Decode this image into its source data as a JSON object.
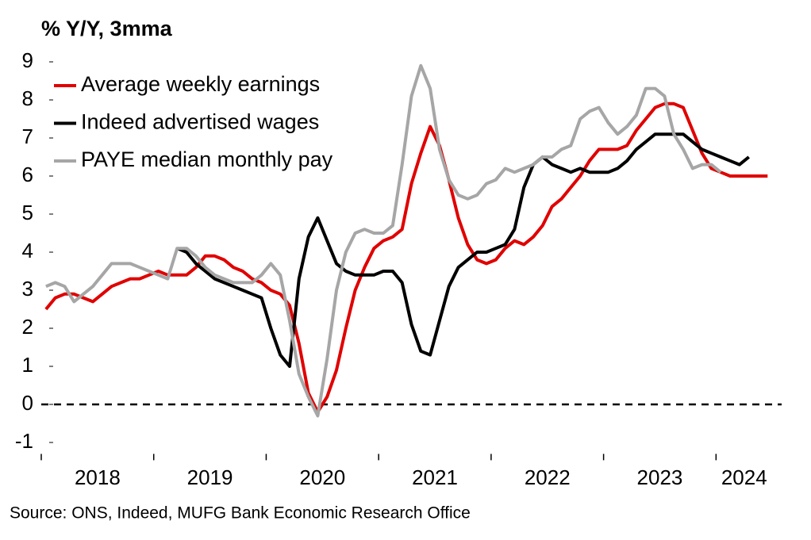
{
  "chart_data": {
    "type": "line",
    "title": "% Y/Y, 3mma",
    "source": "Source: ONS, Indeed, MUFG Bank Economic Research Office",
    "categories": [
      null,
      null,
      null,
      null,
      null,
      null,
      "2018",
      null,
      null,
      null,
      null,
      null,
      null,
      null,
      null,
      null,
      null,
      null,
      "2019",
      null,
      null,
      null,
      null,
      null,
      null,
      null,
      null,
      null,
      null,
      null,
      "2020",
      null,
      null,
      null,
      null,
      null,
      null,
      null,
      null,
      null,
      null,
      null,
      "2021",
      null,
      null,
      null,
      null,
      null,
      null,
      null,
      null,
      null,
      null,
      null,
      "2022",
      null,
      null,
      null,
      null,
      null,
      null,
      null,
      null,
      null,
      null,
      null,
      "2023",
      null,
      null,
      null,
      null,
      null,
      null,
      null,
      null,
      "2024",
      null,
      null,
      null
    ],
    "series": [
      {
        "name": "Average weekly earnings",
        "color": "#e00000",
        "values": [
          2.5,
          2.8,
          2.9,
          2.9,
          2.8,
          2.7,
          2.9,
          3.1,
          3.2,
          3.3,
          3.3,
          3.4,
          3.5,
          3.4,
          3.4,
          3.4,
          3.6,
          3.9,
          3.9,
          3.8,
          3.6,
          3.5,
          3.3,
          3.2,
          3.0,
          2.9,
          2.6,
          1.6,
          0.3,
          -0.2,
          0.2,
          0.9,
          2.0,
          3.0,
          3.6,
          4.1,
          4.3,
          4.4,
          4.6,
          5.8,
          6.6,
          7.3,
          6.8,
          5.9,
          4.9,
          4.2,
          3.8,
          3.7,
          3.8,
          4.1,
          4.3,
          4.2,
          4.4,
          4.7,
          5.2,
          5.4,
          5.7,
          6.0,
          6.4,
          6.7,
          6.7,
          6.7,
          6.8,
          7.2,
          7.5,
          7.8,
          7.9,
          7.9,
          7.8,
          7.2,
          6.6,
          6.2,
          6.1,
          6.0,
          6.0,
          6.0,
          6.0,
          6.0,
          null
        ]
      },
      {
        "name": "Indeed advertised wages",
        "color": "#000000",
        "values": [
          null,
          null,
          null,
          null,
          null,
          null,
          null,
          null,
          null,
          null,
          null,
          null,
          null,
          null,
          4.1,
          4.0,
          3.7,
          3.5,
          3.3,
          3.2,
          3.1,
          3.0,
          2.9,
          2.8,
          2.0,
          1.3,
          1.0,
          3.3,
          4.4,
          4.9,
          4.3,
          3.7,
          3.5,
          3.4,
          3.4,
          3.4,
          3.5,
          3.5,
          3.2,
          2.1,
          1.4,
          1.3,
          2.2,
          3.1,
          3.6,
          3.8,
          4.0,
          4.0,
          4.1,
          4.2,
          4.6,
          5.7,
          6.3,
          6.5,
          6.3,
          6.2,
          6.1,
          6.2,
          6.1,
          6.1,
          6.1,
          6.2,
          6.4,
          6.7,
          6.9,
          7.1,
          7.1,
          7.1,
          7.1,
          6.9,
          6.7,
          6.6,
          6.5,
          6.4,
          6.3,
          6.5,
          null,
          null,
          null
        ]
      },
      {
        "name": "PAYE median monthly pay",
        "color": "#a6a6a6",
        "values": [
          3.1,
          3.2,
          3.1,
          2.7,
          2.9,
          3.1,
          3.4,
          3.7,
          3.7,
          3.7,
          3.6,
          3.5,
          3.4,
          3.3,
          4.1,
          4.1,
          3.9,
          3.6,
          3.4,
          3.3,
          3.2,
          3.2,
          3.2,
          3.4,
          3.7,
          3.4,
          2.2,
          0.8,
          0.2,
          -0.3,
          1.2,
          3.0,
          4.0,
          4.5,
          4.6,
          4.5,
          4.5,
          4.7,
          6.3,
          8.1,
          8.9,
          8.3,
          6.7,
          5.9,
          5.5,
          5.4,
          5.5,
          5.8,
          5.9,
          6.2,
          6.1,
          6.2,
          6.3,
          6.5,
          6.5,
          6.7,
          6.8,
          7.5,
          7.7,
          7.8,
          7.4,
          7.1,
          7.3,
          7.6,
          8.3,
          8.3,
          8.1,
          7.1,
          6.7,
          6.2,
          6.3,
          6.3,
          6.1,
          null,
          null,
          null,
          null,
          null,
          null
        ]
      }
    ],
    "ylim": [
      -1.3,
      9.3
    ],
    "yticks": [
      -1,
      0,
      1,
      2,
      3,
      4,
      5,
      6,
      7,
      8,
      9
    ],
    "zero_line": true,
    "legend": "upper left"
  }
}
